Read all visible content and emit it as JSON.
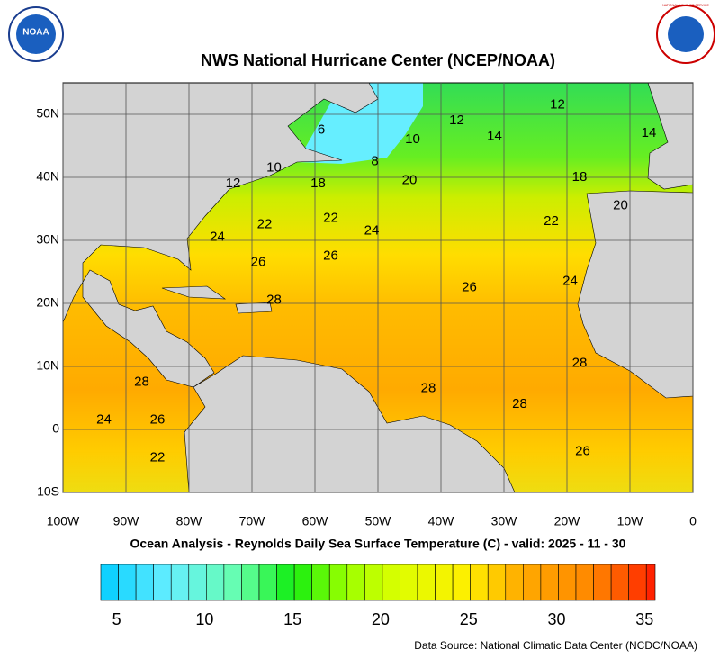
{
  "map": {
    "title": "NWS National Hurricane Center (NCEP/NOAA)",
    "subtitle": "Ocean Analysis - Reynolds Daily Sea Surface Temperature (C) - valid: 2025 - 11 - 30",
    "source": "Data Source: National Climatic Data Center (NCDC/NOAA)",
    "logo_left": "NOAA",
    "logo_right": "NATIONAL WEATHER SERVICE",
    "xlim": [
      -100,
      0
    ],
    "ylim": [
      -10,
      55
    ],
    "xticks": [
      {
        "value": -100,
        "label": "100W"
      },
      {
        "value": -90,
        "label": "90W"
      },
      {
        "value": -80,
        "label": "80W"
      },
      {
        "value": -70,
        "label": "70W"
      },
      {
        "value": -60,
        "label": "60W"
      },
      {
        "value": -50,
        "label": "50W"
      },
      {
        "value": -40,
        "label": "40W"
      },
      {
        "value": -30,
        "label": "30W"
      },
      {
        "value": -20,
        "label": "20W"
      },
      {
        "value": -10,
        "label": "10W"
      },
      0
    ],
    "yticks": [
      {
        "value": -10,
        "label": "10S"
      },
      0,
      {
        "value": 10,
        "label": "10N"
      },
      {
        "value": 20,
        "label": "20N"
      },
      {
        "value": 30,
        "label": "30N"
      },
      {
        "value": 40,
        "label": "40N"
      },
      {
        "value": 50,
        "label": "50N"
      }
    ],
    "grid": true,
    "contour_labels": [
      {
        "value": 12,
        "lon": -21.5,
        "lat": 51.5
      },
      {
        "value": 12,
        "lon": -37.5,
        "lat": 49
      },
      {
        "value": 14,
        "lon": -31.5,
        "lat": 46.5
      },
      {
        "value": 14,
        "lon": -7,
        "lat": 47
      },
      {
        "value": 6,
        "lon": -59,
        "lat": 47.5
      },
      {
        "value": 10,
        "lon": -44.5,
        "lat": 46
      },
      {
        "value": 8,
        "lon": -50.5,
        "lat": 42.5
      },
      {
        "value": 10,
        "lon": -66.5,
        "lat": 41.5
      },
      {
        "value": 12,
        "lon": -73,
        "lat": 39
      },
      {
        "value": 18,
        "lon": -59.5,
        "lat": 39
      },
      {
        "value": 20,
        "lon": -45,
        "lat": 39.5
      },
      {
        "value": 18,
        "lon": -18,
        "lat": 40
      },
      {
        "value": 20,
        "lon": -11.5,
        "lat": 35.5
      },
      {
        "value": 22,
        "lon": -68,
        "lat": 32.5
      },
      {
        "value": 22,
        "lon": -57.5,
        "lat": 33.5
      },
      {
        "value": 24,
        "lon": -51,
        "lat": 31.5
      },
      {
        "value": 22,
        "lon": -22.5,
        "lat": 33
      },
      {
        "value": 24,
        "lon": -75.5,
        "lat": 30.5
      },
      {
        "value": 26,
        "lon": -69,
        "lat": 26.5
      },
      {
        "value": 26,
        "lon": -57.5,
        "lat": 27.5
      },
      {
        "value": 26,
        "lon": -35.5,
        "lat": 22.5
      },
      {
        "value": 24,
        "lon": -19.5,
        "lat": 23.5
      },
      {
        "value": 28,
        "lon": -66.5,
        "lat": 20.5
      },
      {
        "value": 28,
        "lon": -18,
        "lat": 10.5
      },
      {
        "value": 28,
        "lon": -87.5,
        "lat": 7.5
      },
      {
        "value": 28,
        "lon": -42,
        "lat": 6.5
      },
      {
        "value": 28,
        "lon": -27.5,
        "lat": 4
      },
      {
        "value": 24,
        "lon": -93.5,
        "lat": 1.5
      },
      {
        "value": 26,
        "lon": -85,
        "lat": 1.5
      },
      {
        "value": 22,
        "lon": -85,
        "lat": -4.5
      },
      {
        "value": 26,
        "lon": -17.5,
        "lat": -3.5
      }
    ],
    "colorbar": {
      "lim": [
        4.1,
        35.6
      ],
      "ticks": [
        5,
        10,
        15,
        20,
        25,
        30,
        35
      ],
      "color_stops": [
        [
          4,
          "#00ccff"
        ],
        [
          8,
          "#66eeff"
        ],
        [
          12,
          "#66ffaa"
        ],
        [
          15,
          "#11ee11"
        ],
        [
          18,
          "#99ff00"
        ],
        [
          21,
          "#ddff00"
        ],
        [
          25,
          "#ffee00"
        ],
        [
          28,
          "#ffaa00"
        ],
        [
          32,
          "#ff8800"
        ],
        [
          35.6,
          "#ff2200"
        ]
      ]
    }
  }
}
